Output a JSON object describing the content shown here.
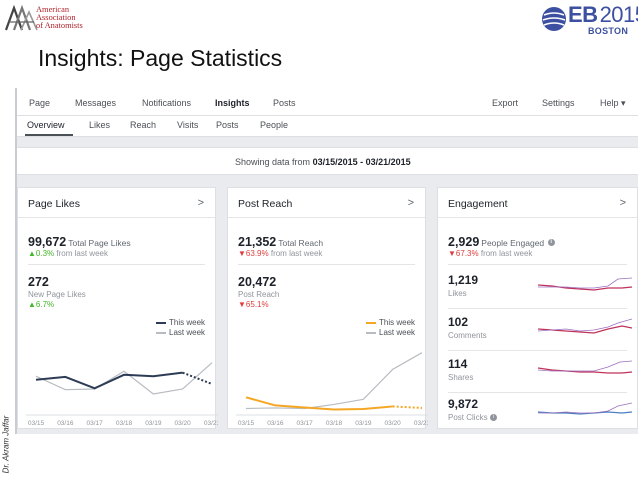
{
  "header": {
    "aaa_logo_lines": [
      "American",
      "Association",
      "of Anatomists"
    ],
    "eb_logo": {
      "prefix": "EB",
      "year": "2015",
      "city": "BOSTON"
    },
    "title": "Insights: Page Statistics",
    "author": "Dr. Akram Jaffar"
  },
  "colors": {
    "this_week_dark": "#2d3b55",
    "this_week_orange": "#f5a623",
    "last_week_gray": "#b8bcc2",
    "up_green": "#42b72a",
    "down_red": "#e03e3e",
    "spark_red": "#c0325a",
    "spark_purple": "#9b6fc0",
    "spark_blue": "#4a7fc1"
  },
  "topnav": {
    "left": [
      "Page",
      "Messages",
      "Notifications",
      "Insights",
      "Posts"
    ],
    "active": "Insights",
    "right": [
      "Export",
      "Settings",
      "Help ▾"
    ]
  },
  "subnav": {
    "items": [
      "Overview",
      "Likes",
      "Reach",
      "Visits",
      "Posts",
      "People"
    ],
    "active": "Overview"
  },
  "date_range": {
    "prefix": "Showing data from",
    "range": "03/15/2015 - 03/21/2015"
  },
  "page_likes": {
    "title": "Page Likes",
    "chevron": ">",
    "total": {
      "value": "99,672",
      "label": "Total Page Likes",
      "change": "▲0.3%",
      "change_suffix": "from last week"
    },
    "new": {
      "value": "272",
      "label": "New Page Likes",
      "change": "▲6.7%"
    },
    "legend": {
      "this_week": "This week",
      "last_week": "Last week"
    }
  },
  "post_reach": {
    "title": "Post Reach",
    "chevron": ">",
    "total": {
      "value": "21,352",
      "label": "Total Reach",
      "change": "▼63.9%",
      "change_suffix": "from last week"
    },
    "post": {
      "value": "20,472",
      "label": "Post Reach",
      "change": "▼65.1%"
    },
    "legend": {
      "this_week": "This week",
      "last_week": "Last week"
    }
  },
  "engagement": {
    "title": "Engagement",
    "chevron": ">",
    "total": {
      "value": "2,929",
      "label": "People Engaged",
      "change": "▼67.3%",
      "change_suffix": "from last week"
    },
    "rows": [
      {
        "value": "1,219",
        "label": "Likes"
      },
      {
        "value": "102",
        "label": "Comments"
      },
      {
        "value": "114",
        "label": "Shares"
      },
      {
        "value": "9,872",
        "label": "Post Clicks"
      }
    ]
  },
  "chart_data": [
    {
      "type": "line",
      "x": [
        "03/15",
        "03/16",
        "03/17",
        "03/18",
        "03/19",
        "03/20",
        "03/21"
      ],
      "series": [
        {
          "name": "This week",
          "values": [
            44,
            48,
            32,
            51,
            49,
            54,
            38
          ]
        },
        {
          "name": "Last week",
          "values": [
            49,
            30,
            31,
            56,
            24,
            31,
            68
          ]
        }
      ],
      "ylim": [
        0,
        100
      ]
    },
    {
      "type": "line",
      "x": [
        "03/15",
        "03/16",
        "03/17",
        "03/18",
        "03/19",
        "03/20",
        "03/21"
      ],
      "series": [
        {
          "name": "This week",
          "values": [
            27,
            11,
            7,
            3,
            4,
            9,
            6
          ]
        },
        {
          "name": "Last week",
          "values": [
            5,
            6,
            5,
            13,
            23,
            82,
            115
          ]
        }
      ],
      "ylim": [
        0,
        140
      ]
    }
  ]
}
